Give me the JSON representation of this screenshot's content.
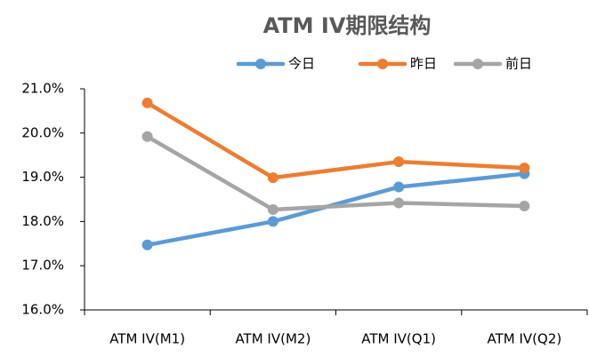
{
  "chart_data": {
    "type": "line",
    "title": "ATM IV期限结构",
    "categories": [
      "ATM IV(M1)",
      "ATM IV(M2)",
      "ATM IV(Q1)",
      "ATM IV(Q2)"
    ],
    "series": [
      {
        "name": "今日",
        "color": "#5b9bd5",
        "values": [
          17.47,
          18.0,
          18.78,
          19.08
        ]
      },
      {
        "name": "昨日",
        "color": "#ed7d31",
        "values": [
          20.68,
          18.99,
          19.35,
          19.21
        ]
      },
      {
        "name": "前日",
        "color": "#a5a5a5",
        "values": [
          19.92,
          18.27,
          18.42,
          18.35
        ]
      }
    ],
    "ylim": [
      16,
      21
    ],
    "yticks": [
      {
        "value": 16,
        "label": "16.0%"
      },
      {
        "value": 17,
        "label": "17.0%"
      },
      {
        "value": 18,
        "label": "18.0%"
      },
      {
        "value": 19,
        "label": "19.0%"
      },
      {
        "value": 20,
        "label": "20.0%"
      },
      {
        "value": 21,
        "label": "21.0%"
      }
    ],
    "grid": false,
    "legend": "top"
  }
}
